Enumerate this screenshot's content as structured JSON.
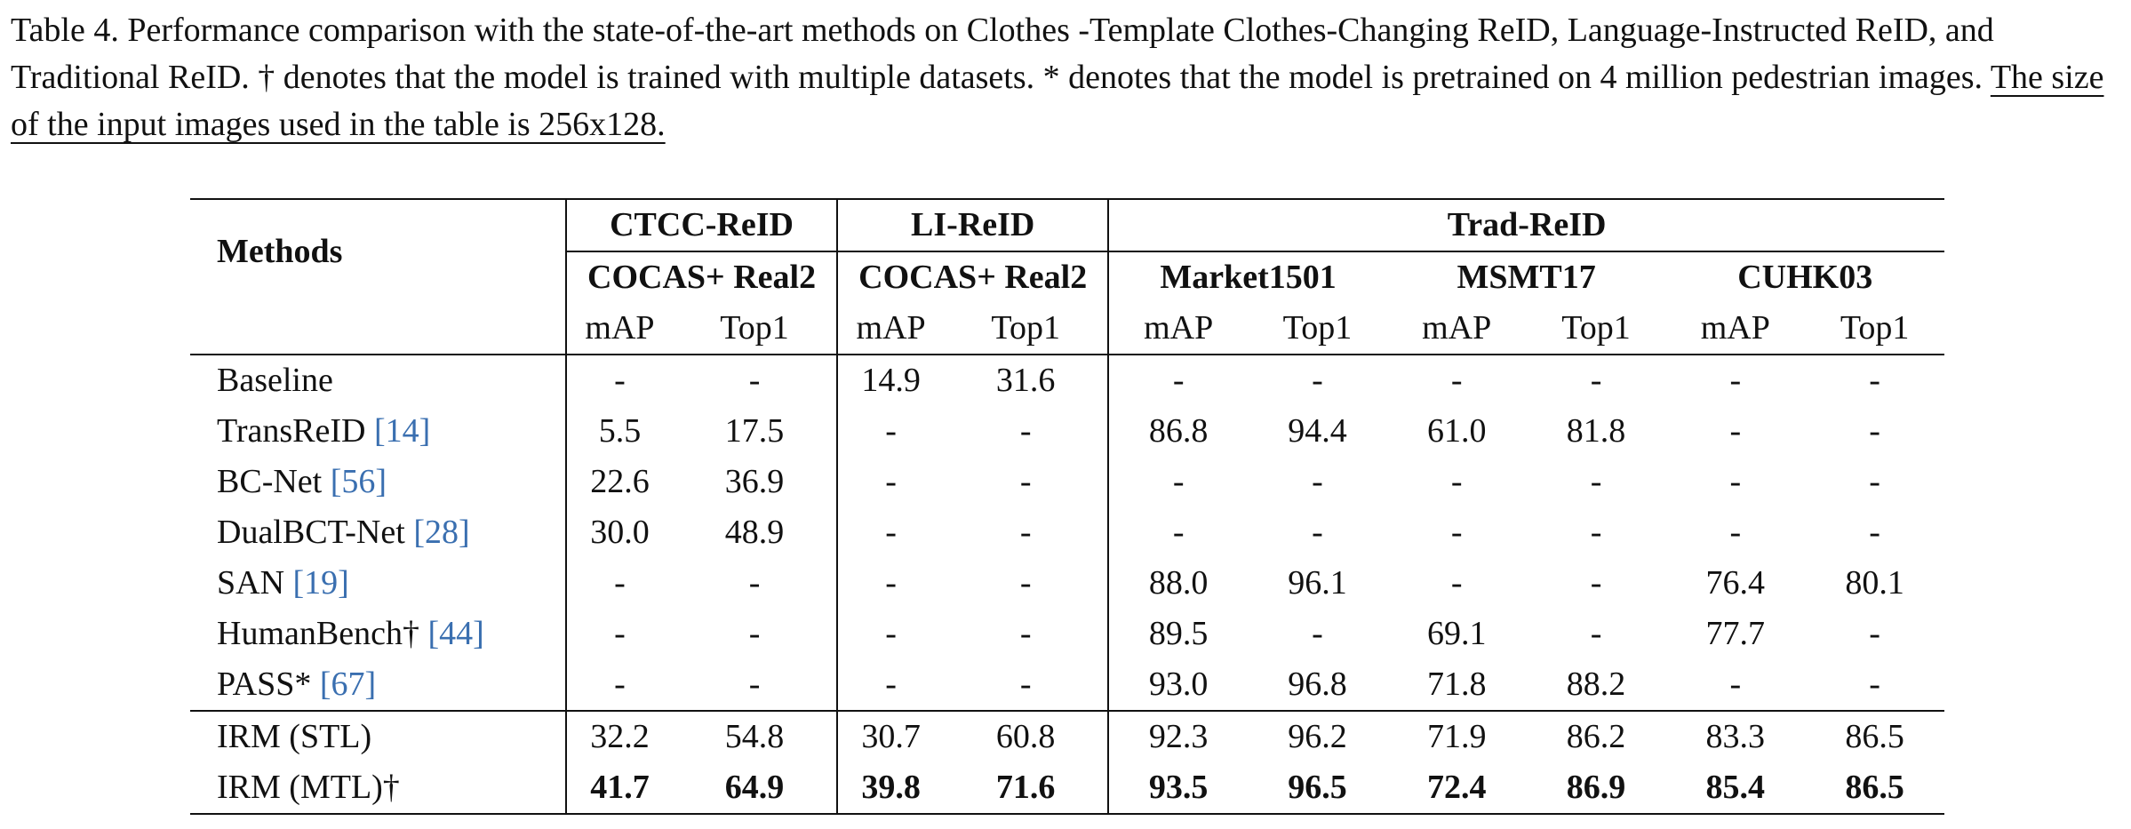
{
  "caption": {
    "main": "Table 4.  Performance comparison with the state-of-the-art methods on Clothes -Template Clothes-Changing ReID, Language-Instructed ReID, and Traditional ReID. † denotes that the model is trained with multiple datasets. * denotes that the model is pretrained on 4 million pedestrian images. ",
    "underlined": "The size of the input images used in the table is 256x128."
  },
  "table": {
    "methods_header": "Methods",
    "groups": [
      {
        "name": "CTCC-ReID",
        "datasets": [
          "COCAS+ Real2"
        ]
      },
      {
        "name": "LI-ReID",
        "datasets": [
          "COCAS+ Real2"
        ]
      },
      {
        "name": "Trad-ReID",
        "datasets": [
          "Market1501",
          "MSMT17",
          "CUHK03"
        ]
      }
    ],
    "metric_labels": [
      "mAP",
      "Top1"
    ],
    "rows": [
      {
        "name": "Baseline",
        "ref": "",
        "values": [
          "-",
          "-",
          "14.9",
          "31.6",
          "-",
          "-",
          "-",
          "-",
          "-",
          "-"
        ]
      },
      {
        "name": "TransReID ",
        "ref": "[14]",
        "values": [
          "5.5",
          "17.5",
          "-",
          "-",
          "86.8",
          "94.4",
          "61.0",
          "81.8",
          "-",
          "-"
        ]
      },
      {
        "name": "BC-Net ",
        "ref": "[56]",
        "values": [
          "22.6",
          "36.9",
          "-",
          "-",
          "-",
          "-",
          "-",
          "-",
          "-",
          "-"
        ]
      },
      {
        "name": "DualBCT-Net ",
        "ref": "[28]",
        "values": [
          "30.0",
          "48.9",
          "-",
          "-",
          "-",
          "-",
          "-",
          "-",
          "-",
          "-"
        ]
      },
      {
        "name": "SAN ",
        "ref": "[19]",
        "values": [
          "-",
          "-",
          "-",
          "-",
          "88.0",
          "96.1",
          "-",
          "-",
          "76.4",
          "80.1"
        ]
      },
      {
        "name": "HumanBench† ",
        "ref": "[44]",
        "values": [
          "-",
          "-",
          "-",
          "-",
          "89.5",
          "-",
          "69.1",
          "-",
          "77.7",
          "-"
        ]
      },
      {
        "name": "PASS* ",
        "ref": "[67]",
        "values": [
          "-",
          "-",
          "-",
          "-",
          "93.0",
          "96.8",
          "71.8",
          "88.2",
          "-",
          "-"
        ]
      }
    ],
    "final_rows": [
      {
        "name": "IRM (STL)",
        "bold": false,
        "values": [
          "32.2",
          "54.8",
          "30.7",
          "60.8",
          "92.3",
          "96.2",
          "71.9",
          "86.2",
          "83.3",
          "86.5"
        ]
      },
      {
        "name": "IRM (MTL)†",
        "bold": true,
        "values": [
          "41.7",
          "64.9",
          "39.8",
          "71.6",
          "93.5",
          "96.5",
          "72.4",
          "86.9",
          "85.4",
          "86.5"
        ]
      }
    ]
  },
  "colors": {
    "text": "#111111",
    "reference_link": "#3a6fb0"
  }
}
